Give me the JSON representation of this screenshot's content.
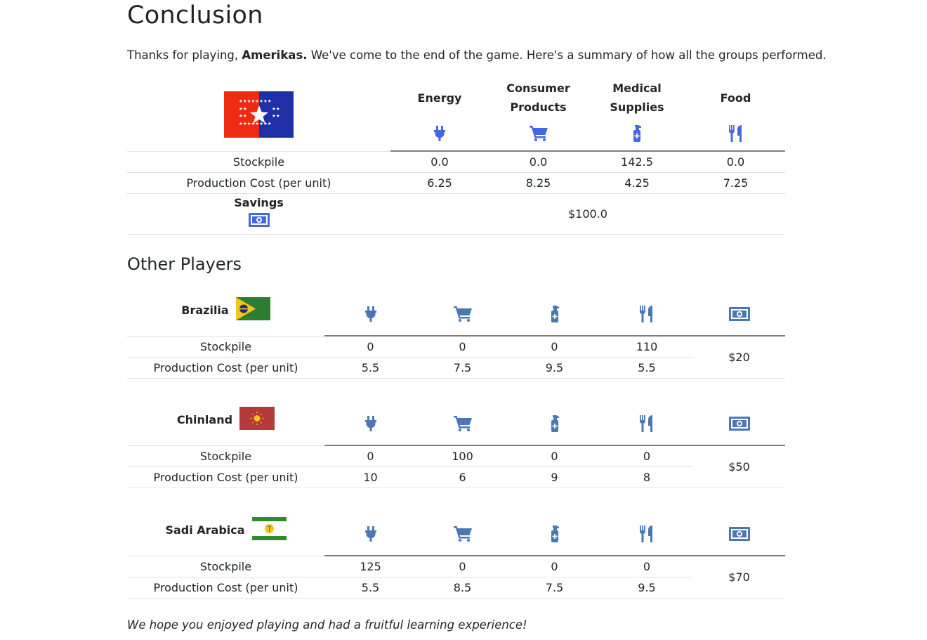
{
  "page": {
    "title": "Conclusion",
    "intro_before": "Thanks for playing,",
    "player_name": "Amerikas.",
    "intro_after": "We've come to the end of the game. Here's a summary of how all the groups performed.",
    "outro": "We hope you enjoyed playing and had a fruitful learning experience!"
  },
  "colors": {
    "icon_main": "#4468e0",
    "icon_other": "#4b78b5",
    "rule": "#7d7d7d"
  },
  "resources": [
    {
      "label_line1": "Energy",
      "label_line2": "",
      "icon": "plug-icon"
    },
    {
      "label_line1": "Consumer",
      "label_line2": "Products",
      "icon": "cart-icon"
    },
    {
      "label_line1": "Medical",
      "label_line2": "Supplies",
      "icon": "pump-bottle-medical-icon"
    },
    {
      "label_line1": "Food",
      "label_line2": "",
      "icon": "utensils-icon"
    }
  ],
  "main": {
    "flag": "amerikas-flag",
    "rows": [
      {
        "label": "Stockpile",
        "values": [
          "0.0",
          "0.0",
          "142.5",
          "0.0"
        ]
      },
      {
        "label": "Production Cost (per unit)",
        "values": [
          "6.25",
          "8.25",
          "4.25",
          "7.25"
        ]
      }
    ],
    "savings_label": "Savings",
    "savings_icon": "money-bill-icon",
    "savings_value": "$100.0"
  },
  "other_heading": "Other Players",
  "others": [
    {
      "name": "Brazilia",
      "flag": "brazilia-flag",
      "stockpile_label": "Stockpile",
      "cost_label": "Production Cost (per unit)",
      "stockpile": [
        "0",
        "0",
        "0",
        "110"
      ],
      "cost": [
        "5.5",
        "7.5",
        "9.5",
        "5.5"
      ],
      "savings": "$20"
    },
    {
      "name": "Chinland",
      "flag": "chinland-flag",
      "stockpile_label": "Stockpile",
      "cost_label": "Production Cost (per unit)",
      "stockpile": [
        "0",
        "100",
        "0",
        "0"
      ],
      "cost": [
        "10",
        "6",
        "9",
        "8"
      ],
      "savings": "$50"
    },
    {
      "name": "Sadi Arabica",
      "flag": "sadi-arabica-flag",
      "stockpile_label": "Stockpile",
      "cost_label": "Production Cost (per unit)",
      "stockpile": [
        "125",
        "0",
        "0",
        "0"
      ],
      "cost": [
        "5.5",
        "8.5",
        "7.5",
        "9.5"
      ],
      "savings": "$70"
    }
  ]
}
